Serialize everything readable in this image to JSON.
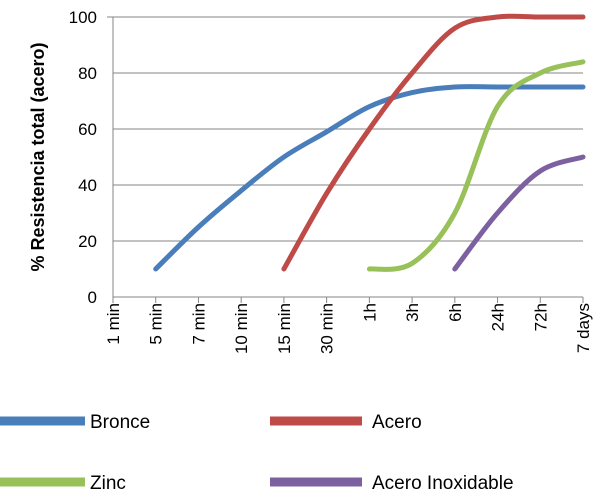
{
  "chart_data": {
    "type": "line",
    "title": "",
    "xlabel": "",
    "ylabel": "% Resistencia total (acero)",
    "categories": [
      "1 min",
      "5 min",
      "7 min",
      "10 min",
      "15 min",
      "30 min",
      "1h",
      "3h",
      "6h",
      "24h",
      "72h",
      "7 days"
    ],
    "yticks": [
      0,
      20,
      40,
      60,
      80,
      100
    ],
    "ylim": [
      0,
      100
    ],
    "grid": "horizontal",
    "legend_position": "bottom",
    "series": [
      {
        "name": "Bronce",
        "color": "#4a7ebb",
        "values": [
          null,
          10,
          25,
          38,
          50,
          59,
          68,
          73,
          75,
          75,
          75,
          75
        ]
      },
      {
        "name": "Acero",
        "color": "#be4b48",
        "values": [
          null,
          null,
          null,
          null,
          10,
          37,
          60,
          80,
          96,
          100,
          100,
          100
        ]
      },
      {
        "name": "Zinc",
        "color": "#98c15a",
        "values": [
          null,
          null,
          null,
          null,
          null,
          null,
          10,
          12,
          30,
          68,
          80,
          84
        ]
      },
      {
        "name": "Acero Inoxidable",
        "color": "#7d60a0",
        "values": [
          null,
          null,
          null,
          null,
          null,
          null,
          null,
          null,
          10,
          30,
          45,
          50
        ]
      }
    ]
  }
}
